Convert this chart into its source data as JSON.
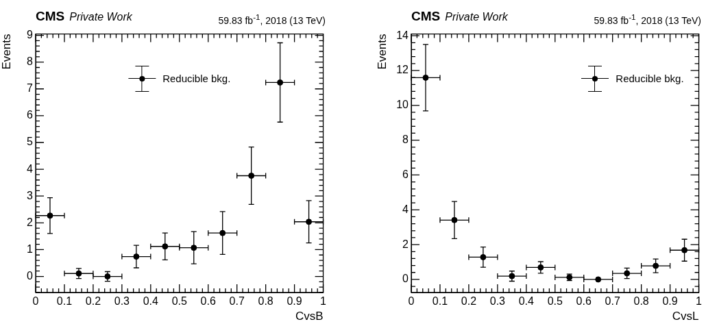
{
  "chart_data": [
    {
      "type": "scatter",
      "title": "CMS",
      "subtitle": "Private Work",
      "annotations": [
        "59.83 fb$^{-1}$, 2018 (13 TeV)"
      ],
      "xlabel": "CvsB",
      "ylabel": "Events",
      "x": [
        0.05,
        0.15,
        0.25,
        0.35,
        0.45,
        0.55,
        0.65,
        0.75,
        0.85,
        0.95
      ],
      "xlim": [
        0,
        1
      ],
      "xticks": [
        0,
        0.1,
        0.2,
        0.3,
        0.4,
        0.5,
        0.6,
        0.7,
        0.8,
        0.9,
        1
      ],
      "ylim": [
        -0.6,
        9.05
      ],
      "yticks": [
        0,
        1,
        2,
        3,
        4,
        5,
        6,
        7,
        8,
        9
      ],
      "grid": false,
      "legend": "top",
      "marker": "circle",
      "series": [
        {
          "name": "Reducible bkg.",
          "color": "#000000",
          "values": [
            2.27,
            0.11,
            0,
            0.74,
            1.12,
            1.07,
            1.62,
            3.76,
            7.24,
            2.04
          ],
          "errors": [
            0.67,
            0.19,
            0.18,
            0.42,
            0.5,
            0.6,
            0.8,
            1.07,
            1.48,
            0.79
          ],
          "xerrors": [
            0.05,
            0.05,
            0.05,
            0.05,
            0.05,
            0.05,
            0.05,
            0.05,
            0.05,
            0.05
          ]
        }
      ]
    },
    {
      "type": "scatter",
      "title": "CMS",
      "subtitle": "Private Work",
      "annotations": [
        "59.83 fb$^{-1}$, 2018 (13 TeV)"
      ],
      "xlabel": "CvsL",
      "ylabel": "Events",
      "x": [
        0.05,
        0.15,
        0.25,
        0.35,
        0.45,
        0.55,
        0.65,
        0.75,
        0.85,
        0.95
      ],
      "xlim": [
        0,
        1
      ],
      "xticks": [
        0,
        0.1,
        0.2,
        0.3,
        0.4,
        0.5,
        0.6,
        0.7,
        0.8,
        0.9,
        1
      ],
      "ylim": [
        -0.75,
        14.1
      ],
      "yticks": [
        0,
        2,
        4,
        6,
        8,
        10,
        12,
        14
      ],
      "grid": false,
      "legend": "top right",
      "marker": "circle",
      "series": [
        {
          "name": "Reducible bkg.",
          "color": "#000000",
          "values": [
            11.59,
            3.41,
            1.28,
            0.19,
            0.69,
            0.12,
            0,
            0.35,
            0.78,
            1.68
          ],
          "errors": [
            1.91,
            1.07,
            0.58,
            0.29,
            0.33,
            0.19,
            0,
            0.3,
            0.39,
            0.63
          ],
          "xerrors": [
            0.05,
            0.05,
            0.05,
            0.05,
            0.05,
            0.05,
            0.05,
            0.05,
            0.05,
            0.05
          ]
        }
      ]
    }
  ]
}
